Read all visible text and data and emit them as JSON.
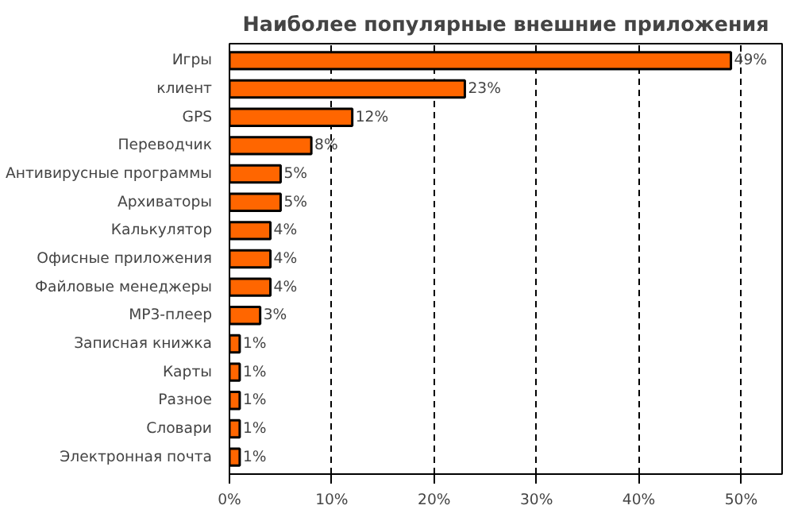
{
  "chart_data": {
    "type": "bar",
    "orientation": "horizontal",
    "title": "Наиболее популярные внешние приложения",
    "categories": [
      "Игры",
      "клиент",
      "GPS",
      "Переводчик",
      "Антивирусные программы",
      "Архиваторы",
      "Калькулятор",
      "Офисные приложения",
      "Файловые менеджеры",
      "MP3-плеер",
      "Записная книжка",
      "Карты",
      "Разное",
      "Словари",
      "Электронная почта"
    ],
    "values": [
      49,
      23,
      12,
      8,
      5,
      5,
      4,
      4,
      4,
      3,
      1,
      1,
      1,
      1,
      1
    ],
    "value_labels": [
      "49%",
      "23%",
      "12%",
      "8%",
      "5%",
      "5%",
      "4%",
      "4%",
      "4%",
      "3%",
      "1%",
      "1%",
      "1%",
      "1%",
      "1%"
    ],
    "color": "#ff6600",
    "xlim": [
      0,
      54
    ],
    "xticks": [
      {
        "value": 0,
        "label": "0%"
      },
      {
        "value": 10,
        "label": "10%"
      },
      {
        "value": 20,
        "label": "20%"
      },
      {
        "value": 30,
        "label": "30%"
      },
      {
        "value": 40,
        "label": "40%"
      },
      {
        "value": 50,
        "label": "50%"
      }
    ],
    "grid": "x"
  }
}
